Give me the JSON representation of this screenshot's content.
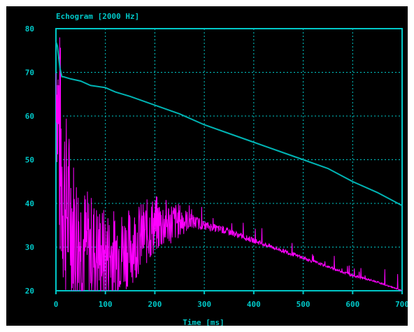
{
  "chart_data": {
    "type": "line",
    "title": "Echogram [2000 Hz]",
    "xlabel": "Time [ms]",
    "ylabel": "",
    "xlim": [
      0,
      700
    ],
    "ylim": [
      20,
      80
    ],
    "x_ticks": [
      "0",
      "100",
      "200",
      "300",
      "400",
      "500",
      "600",
      "700"
    ],
    "y_ticks": [
      "80",
      "70",
      "60",
      "50",
      "40",
      "30",
      "20"
    ],
    "grid": true,
    "colors": {
      "background": "#000000",
      "axes": "#00c8c8",
      "text": "#00c8c8",
      "decay_curve": "#00b4b4",
      "echogram": "#ff00ff"
    },
    "series": [
      {
        "x": [
          0,
          3,
          5,
          8,
          10,
          12,
          15,
          30,
          50,
          70,
          100,
          120,
          150,
          200,
          250,
          300,
          350,
          400,
          450,
          500,
          550,
          600,
          650,
          700
        ],
        "values": [
          77,
          76,
          74,
          71,
          70,
          69,
          69,
          68.5,
          68,
          67,
          66.5,
          65.5,
          64.5,
          62.5,
          60.5,
          58,
          56,
          54,
          52,
          50,
          48,
          45,
          42.5,
          39.5
        ]
      },
      {
        "x": [
          0,
          5,
          10,
          20,
          40,
          60,
          80,
          100,
          150,
          200,
          250,
          270,
          300,
          350,
          400,
          450,
          500,
          550,
          600,
          650,
          700
        ],
        "values": [
          70,
          58,
          48,
          40,
          33,
          30,
          29,
          28,
          30,
          35,
          36,
          36,
          35,
          33.5,
          31.5,
          29.5,
          27.5,
          25.5,
          23.5,
          22,
          20
        ],
        "spread": [
          10,
          30,
          28,
          22,
          16,
          14,
          12,
          11,
          9,
          7,
          4,
          2,
          1,
          0.8,
          0.6,
          0.5,
          0.4,
          0.3,
          0.3,
          0.2,
          0.1
        ]
      }
    ]
  }
}
